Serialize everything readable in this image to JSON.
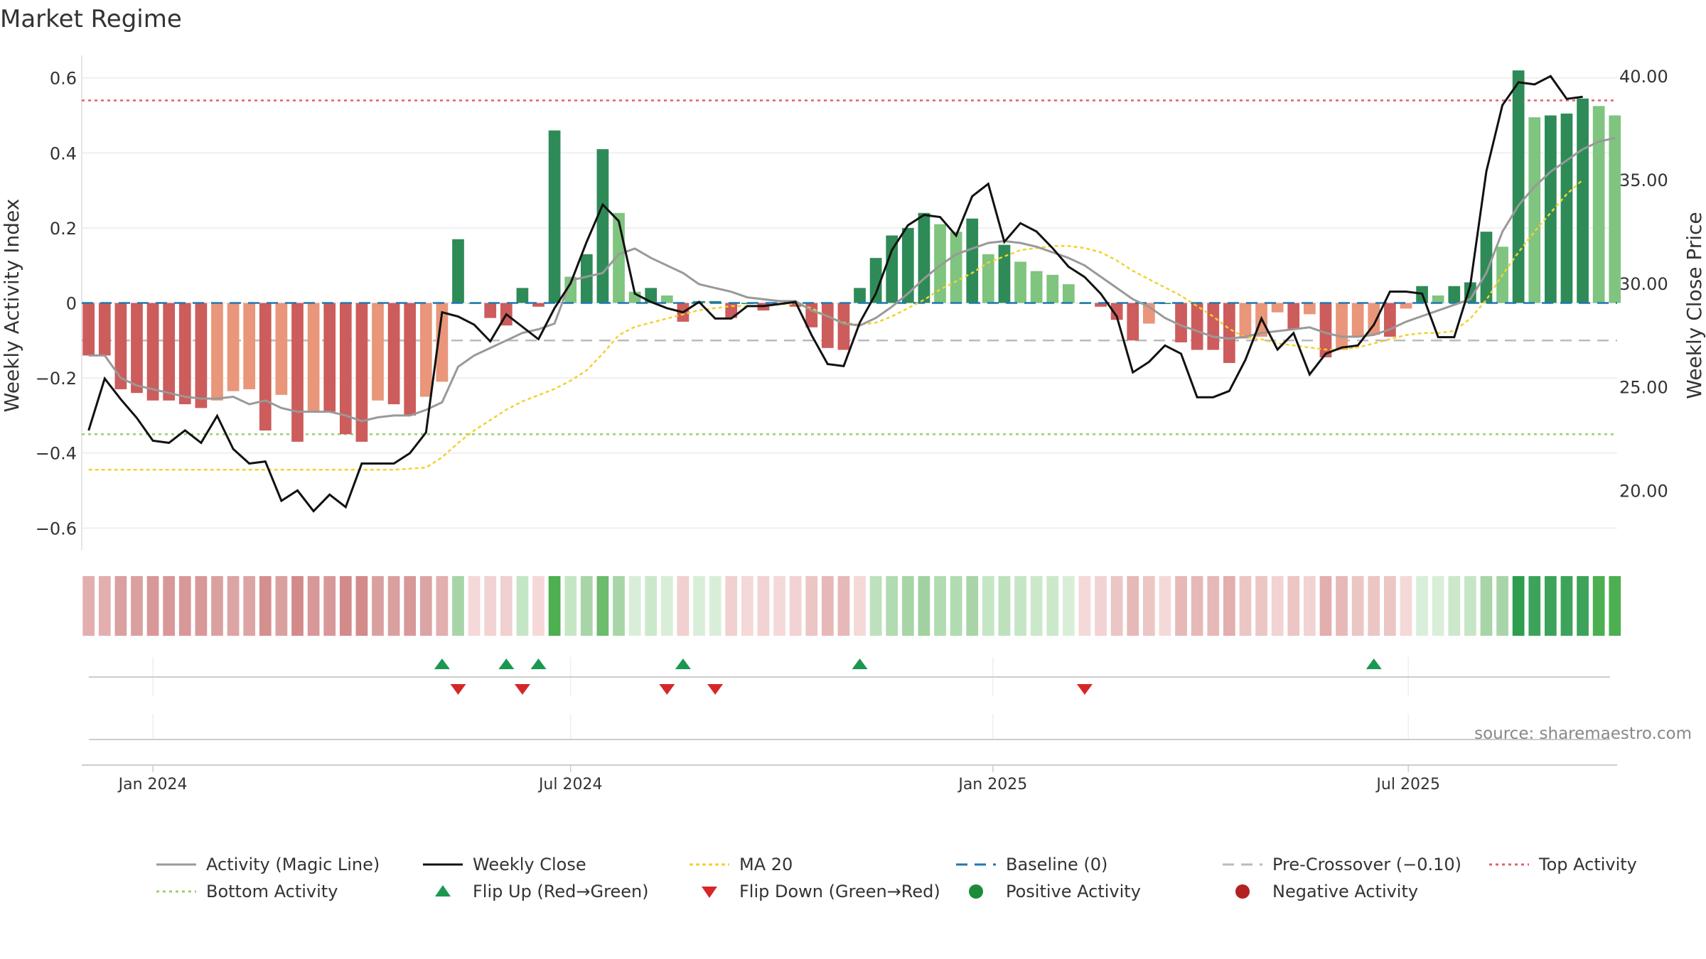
{
  "title": "Market Regime",
  "source": "source: sharemaestro.com",
  "axes": {
    "left_label": "Weekly Activity Index",
    "right_label": "Weekly Close Price",
    "left_ticks": [
      "0.6",
      "0.4",
      "0.2",
      "0",
      "−0.2",
      "−0.4",
      "−0.6"
    ],
    "right_ticks": [
      "40.00",
      "35.00",
      "30.00",
      "25.00",
      "20.00"
    ],
    "x_ticks": [
      "Jan 2024",
      "Jul 2024",
      "Jan 2025",
      "Jul 2025"
    ]
  },
  "legend": [
    {
      "key": "activity",
      "label": "Activity (Magic Line)"
    },
    {
      "key": "close",
      "label": "Weekly Close"
    },
    {
      "key": "ma20",
      "label": "MA 20"
    },
    {
      "key": "baseline",
      "label": "Baseline (0)"
    },
    {
      "key": "precross",
      "label": "Pre-Crossover (−0.10)"
    },
    {
      "key": "top",
      "label": "Top Activity"
    },
    {
      "key": "bottom",
      "label": "Bottom Activity"
    },
    {
      "key": "flipup",
      "label": "Flip Up (Red→Green)"
    },
    {
      "key": "flipdown",
      "label": "Flip Down (Green→Red)"
    },
    {
      "key": "posact",
      "label": "Positive Activity"
    },
    {
      "key": "negact",
      "label": "Negative Activity"
    }
  ],
  "colors": {
    "green_dark": "#2e8b57",
    "green_light": "#7fc47f",
    "red_dark": "#cd5c5c",
    "red_light": "#e9967a",
    "close": "#111111",
    "activity_line": "#999999",
    "ma20": "#f2d22e",
    "baseline": "#1f77b4",
    "precross": "#bbbbbb",
    "top": "#e06070",
    "bottom": "#99d06a",
    "flip_up": "#1a9850",
    "flip_down": "#d62728"
  },
  "chart_data": {
    "type": "bar",
    "x_start": "2023-12-04",
    "x_step_days": 7,
    "activity_ylim": [
      -0.66,
      0.66
    ],
    "price_ylim": [
      17.1,
      41.0
    ],
    "x_range": [
      "2023-12-01",
      "2025-09-30"
    ],
    "levels": {
      "baseline": 0,
      "pre_crossover": -0.1,
      "top": 0.54,
      "bottom": -0.35
    },
    "activity": [
      -0.14,
      -0.14,
      -0.23,
      -0.24,
      -0.26,
      -0.26,
      -0.27,
      -0.28,
      -0.26,
      -0.235,
      -0.23,
      -0.34,
      -0.245,
      -0.37,
      -0.29,
      -0.29,
      -0.35,
      -0.37,
      -0.26,
      -0.27,
      -0.3,
      -0.25,
      -0.21,
      0.17,
      0.0,
      -0.04,
      -0.06,
      0.04,
      -0.01,
      0.46,
      0.07,
      0.13,
      0.41,
      0.24,
      0.03,
      0.04,
      0.02,
      -0.05,
      0.005,
      0.005,
      -0.04,
      0.0,
      -0.02,
      0.0,
      -0.01,
      -0.065,
      -0.12,
      -0.125,
      0.04,
      0.12,
      0.18,
      0.2,
      0.24,
      0.21,
      0.19,
      0.225,
      0.13,
      0.155,
      0.11,
      0.085,
      0.075,
      0.05,
      0.0,
      -0.01,
      -0.045,
      -0.1,
      -0.055,
      0.0,
      -0.105,
      -0.125,
      -0.125,
      -0.16,
      -0.095,
      -0.09,
      -0.025,
      -0.07,
      -0.03,
      -0.145,
      -0.125,
      -0.09,
      -0.085,
      -0.09,
      -0.015,
      0.045,
      0.02,
      0.045,
      0.055,
      0.19,
      0.15,
      0.62,
      0.495,
      0.5,
      0.505,
      0.545,
      0.525,
      0.5
    ],
    "activity_line": [
      -0.14,
      -0.14,
      -0.2,
      -0.22,
      -0.23,
      -0.24,
      -0.25,
      -0.255,
      -0.255,
      -0.25,
      -0.27,
      -0.26,
      -0.28,
      -0.29,
      -0.29,
      -0.29,
      -0.3,
      -0.315,
      -0.305,
      -0.3,
      -0.3,
      -0.285,
      -0.265,
      -0.17,
      -0.14,
      -0.12,
      -0.1,
      -0.08,
      -0.07,
      -0.055,
      0.06,
      0.07,
      0.08,
      0.13,
      0.145,
      0.12,
      0.1,
      0.08,
      0.05,
      0.04,
      0.03,
      0.015,
      0.01,
      0.005,
      0.005,
      -0.02,
      -0.035,
      -0.055,
      -0.06,
      -0.04,
      -0.01,
      0.025,
      0.065,
      0.1,
      0.13,
      0.145,
      0.16,
      0.165,
      0.16,
      0.15,
      0.135,
      0.12,
      0.1,
      0.07,
      0.04,
      0.01,
      -0.01,
      -0.04,
      -0.06,
      -0.075,
      -0.09,
      -0.095,
      -0.09,
      -0.08,
      -0.075,
      -0.07,
      -0.065,
      -0.08,
      -0.09,
      -0.09,
      -0.085,
      -0.07,
      -0.05,
      -0.035,
      -0.02,
      -0.005,
      0.01,
      0.08,
      0.19,
      0.26,
      0.31,
      0.35,
      0.38,
      0.41,
      0.43,
      0.44
    ],
    "close": [
      22.9,
      25.4,
      24.4,
      23.5,
      22.4,
      22.3,
      22.9,
      22.3,
      23.6,
      22.0,
      21.3,
      21.4,
      19.5,
      20.0,
      19.0,
      19.8,
      19.2,
      21.3,
      21.3,
      21.3,
      21.8,
      22.8,
      28.6,
      28.4,
      28.0,
      27.2,
      28.5,
      27.9,
      27.3,
      28.8,
      30.0,
      32.0,
      33.8,
      33.0,
      29.5,
      29.1,
      28.8,
      28.6,
      29.1,
      28.3,
      28.3,
      28.9,
      28.9,
      29.0,
      29.1,
      27.5,
      26.1,
      26.0,
      28.1,
      29.5,
      31.6,
      32.8,
      33.3,
      33.2,
      32.3,
      34.2,
      34.8,
      32.0,
      32.9,
      32.5,
      31.7,
      30.8,
      30.3,
      29.5,
      28.4,
      25.7,
      26.2,
      27.0,
      26.6,
      24.5,
      24.5,
      24.8,
      26.3,
      28.3,
      26.8,
      27.6,
      25.6,
      26.6,
      26.9,
      27.0,
      28.0,
      29.6,
      29.6,
      29.5,
      27.4,
      27.4,
      29.9,
      35.4,
      38.6,
      39.7,
      39.6,
      40.0,
      38.9,
      39.0
    ],
    "ma20": [
      21.0,
      21.0,
      21.0,
      21.0,
      21.0,
      21.0,
      21.0,
      21.0,
      21.0,
      21.0,
      21.0,
      21.0,
      21.0,
      21.0,
      21.0,
      21.0,
      21.0,
      21.0,
      21.0,
      21.0,
      21.05,
      21.1,
      21.6,
      22.3,
      22.9,
      23.4,
      23.9,
      24.3,
      24.6,
      24.9,
      25.3,
      25.8,
      26.6,
      27.5,
      27.9,
      28.1,
      28.3,
      28.5,
      28.7,
      28.8,
      28.9,
      28.9,
      28.9,
      29.0,
      29.0,
      28.8,
      28.4,
      28.1,
      28.0,
      28.1,
      28.4,
      28.8,
      29.2,
      29.7,
      30.1,
      30.5,
      31.0,
      31.3,
      31.6,
      31.7,
      31.8,
      31.8,
      31.7,
      31.5,
      31.1,
      30.6,
      30.2,
      29.8,
      29.4,
      28.9,
      28.4,
      27.8,
      27.4,
      27.3,
      27.1,
      27.0,
      26.9,
      26.8,
      26.8,
      26.9,
      27.1,
      27.3,
      27.5,
      27.6,
      27.6,
      27.7,
      28.3,
      29.2,
      30.4,
      31.5,
      32.5,
      33.4,
      34.3,
      35.0
    ],
    "flip_up_weeks": [
      22,
      26,
      28,
      37,
      48,
      80
    ],
    "flip_down_weeks": [
      23,
      27,
      36,
      39,
      62
    ],
    "regime_strip_colors": [
      "#e3aeae",
      "#e3aeae",
      "#daa0a0",
      "#daa0a0",
      "#d89898",
      "#d89898",
      "#d89898",
      "#d89898",
      "#daa0a0",
      "#dca4a4",
      "#dca4a4",
      "#d48f8f",
      "#daa0a0",
      "#d28a8a",
      "#d89898",
      "#d89898",
      "#d28a8a",
      "#d28a8a",
      "#daa0a0",
      "#daa0a0",
      "#d89898",
      "#dca4a4",
      "#e3aeae",
      "#a8d5a8",
      "#f5d8d8",
      "#f2d2d2",
      "#f0d0d0",
      "#c5e6c5",
      "#f5d8d8",
      "#4caf50",
      "#c5e6c5",
      "#a8d5a8",
      "#6dbb6d",
      "#a8d5a8",
      "#d8eed8",
      "#cbe8cb",
      "#d8eed8",
      "#f0d0d0",
      "#d8eed8",
      "#d8eed8",
      "#f0d0d0",
      "#f5d8d8",
      "#f2d2d2",
      "#f5d8d8",
      "#f2d2d2",
      "#ecc5c5",
      "#e6b8b8",
      "#e6b8b8",
      "#f5d8d8",
      "#bde1bd",
      "#b1dbb1",
      "#a8d5a8",
      "#a1d1a1",
      "#b1dbb1",
      "#b1dbb1",
      "#a8d5a8",
      "#c5e6c5",
      "#bde1bd",
      "#c5e6c5",
      "#cbe8cb",
      "#cbe8cb",
      "#d8eed8",
      "#f5d8d8",
      "#f2d2d2",
      "#ecc5c5",
      "#e6b8b8",
      "#ecc5c5",
      "#f5d8d8",
      "#e6b8b8",
      "#e6b8b8",
      "#e6b8b8",
      "#e3aeae",
      "#ecc5c5",
      "#ecc5c5",
      "#f2d2d2",
      "#ecc5c5",
      "#f2d2d2",
      "#e3aeae",
      "#e6b8b8",
      "#ecc5c5",
      "#ecc5c5",
      "#ecc5c5",
      "#f5d8d8",
      "#d8eed8",
      "#d8eed8",
      "#cbe8cb",
      "#c5e6c5",
      "#a8d5a8",
      "#a8d5a8",
      "#2e9e4e",
      "#3da35a",
      "#3da35a",
      "#3da35a",
      "#3da35a",
      "#4caf50",
      "#4caf50"
    ],
    "x_tick_dates": [
      "2024-01-01",
      "2024-07-01",
      "2025-01-01",
      "2025-07-01"
    ],
    "left_tick_values": [
      0.6,
      0.4,
      0.2,
      0,
      -0.2,
      -0.4,
      -0.6
    ],
    "right_tick_values": [
      40,
      35,
      30,
      25,
      20
    ]
  }
}
